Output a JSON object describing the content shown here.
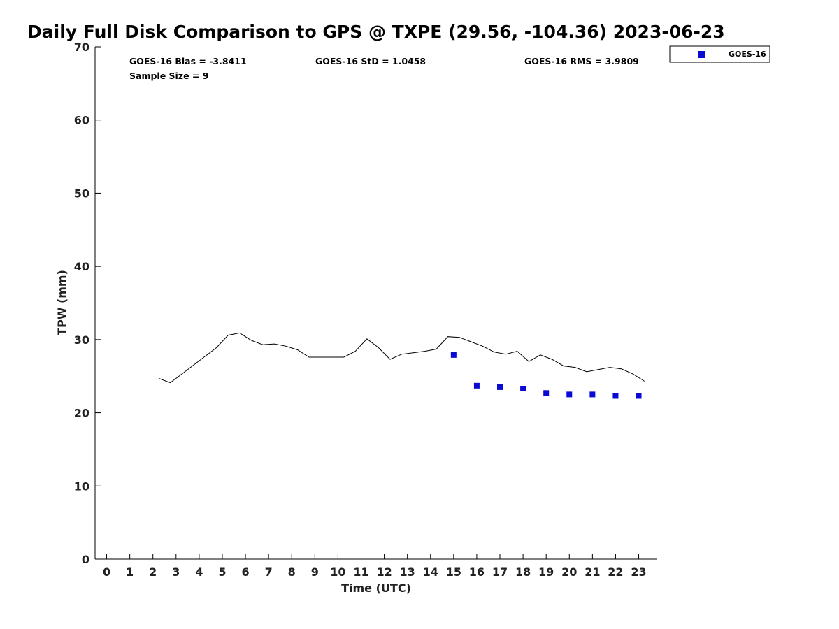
{
  "chart_data": {
    "type": "line",
    "title": "Daily Full Disk Comparison to GPS @ TXPE (29.56, -104.36) 2023-06-23",
    "xlabel": "Time (UTC)",
    "ylabel": "TPW (mm)",
    "xlim": [
      -0.5,
      23.8
    ],
    "ylim": [
      0,
      70
    ],
    "xticks": [
      "0",
      "1",
      "2",
      "3",
      "4",
      "5",
      "6",
      "7",
      "8",
      "9",
      "10",
      "11",
      "12",
      "13",
      "14",
      "15",
      "16",
      "17",
      "18",
      "19",
      "20",
      "21",
      "22",
      "23"
    ],
    "yticks": [
      "0",
      "10",
      "20",
      "30",
      "40",
      "50",
      "60",
      "70"
    ],
    "grid": false,
    "legend_position": "top-right-outside",
    "stats": {
      "bias": "GOES-16 Bias = -3.8411",
      "std": "GOES-16 StD = 1.0458",
      "rms": "GOES-16 RMS = 3.9809",
      "sample_size": "Sample Size = 9"
    },
    "series": [
      {
        "kind": "line",
        "color": "#000000",
        "x": [
          2.25,
          2.75,
          3.25,
          3.75,
          4.25,
          4.75,
          5.25,
          5.75,
          6.25,
          6.75,
          7.25,
          7.75,
          8.25,
          8.75,
          9.25,
          9.75,
          10.25,
          10.75,
          11.25,
          11.75,
          12.25,
          12.75,
          13.25,
          13.75,
          14.25,
          14.75,
          15.25,
          15.75,
          16.25,
          16.75,
          17.25,
          17.75,
          18.25,
          18.75,
          19.25,
          19.75,
          20.25,
          20.75,
          21.25,
          21.75,
          22.25,
          22.75,
          23.25
        ],
        "y": [
          24.7,
          24.1,
          25.3,
          26.5,
          27.7,
          28.9,
          30.6,
          30.9,
          29.9,
          29.3,
          29.4,
          29.1,
          28.6,
          27.6,
          27.6,
          27.6,
          27.6,
          28.4,
          30.1,
          28.9,
          27.3,
          28.0,
          28.2,
          28.4,
          28.7,
          30.4,
          30.3,
          29.7,
          29.1,
          28.3,
          28.0,
          28.4,
          27.0,
          27.9,
          27.3,
          26.4,
          26.2,
          25.6,
          25.9,
          26.2,
          26.0,
          25.3,
          24.3
        ]
      },
      {
        "kind": "scatter",
        "name": "GOES-16",
        "color": "#0a0ad4",
        "x": [
          15,
          16,
          17,
          18,
          19,
          20,
          21,
          22,
          23
        ],
        "y": [
          27.9,
          23.7,
          23.5,
          23.3,
          22.7,
          22.5,
          22.5,
          22.3,
          22.3
        ]
      }
    ]
  }
}
